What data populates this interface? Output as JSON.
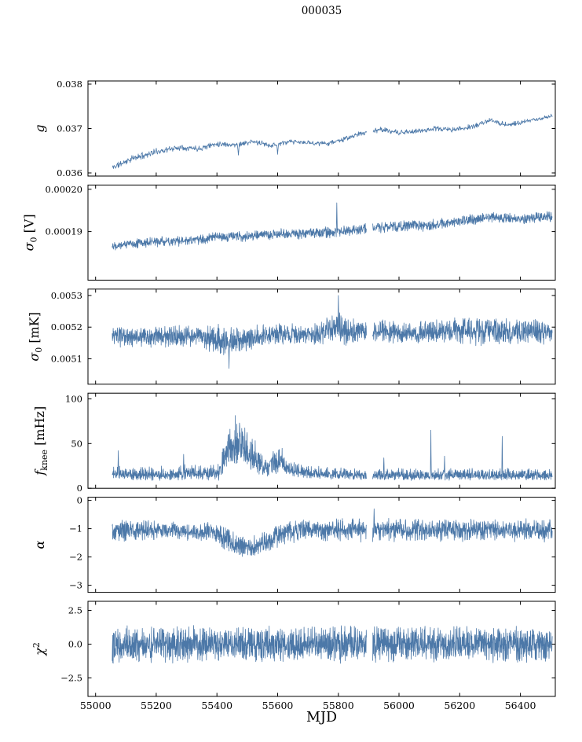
{
  "chart_data": {
    "type": "line",
    "title": "000035",
    "xlabel": "MJD",
    "line_color": "#4c78a8",
    "axis_color": "#000000",
    "background": "#ffffff",
    "xlim": [
      54975,
      56515
    ],
    "x_start": 55055,
    "x_end": 56505,
    "gaps": [
      [
        55893,
        55913
      ]
    ],
    "xticks": {
      "values": [
        55000,
        55200,
        55400,
        55600,
        55800,
        56000,
        56200,
        56400
      ],
      "labels": [
        "55000",
        "55200",
        "55400",
        "55600",
        "55800",
        "56000",
        "56200",
        "56400"
      ]
    },
    "panels": [
      {
        "name": "g",
        "ylabel": [
          {
            "t": "g",
            "s": "i"
          }
        ],
        "ylim": [
          0.03593,
          0.03807
        ],
        "ytick_values": [
          0.036,
          0.037,
          0.038
        ],
        "ytick_labels": [
          "0.036",
          "0.037",
          "0.038"
        ],
        "mean": [
          [
            55055,
            0.03612
          ],
          [
            55120,
            0.03632
          ],
          [
            55200,
            0.03648
          ],
          [
            55280,
            0.03658
          ],
          [
            55340,
            0.03655
          ],
          [
            55400,
            0.03666
          ],
          [
            55460,
            0.03663
          ],
          [
            55520,
            0.0367
          ],
          [
            55580,
            0.03662
          ],
          [
            55640,
            0.0367
          ],
          [
            55700,
            0.03668
          ],
          [
            55760,
            0.03666
          ],
          [
            55820,
            0.03676
          ],
          [
            55880,
            0.0369
          ],
          [
            55940,
            0.03698
          ],
          [
            56000,
            0.0369
          ],
          [
            56060,
            0.03694
          ],
          [
            56120,
            0.037
          ],
          [
            56180,
            0.03697
          ],
          [
            56240,
            0.03704
          ],
          [
            56300,
            0.03718
          ],
          [
            56360,
            0.03708
          ],
          [
            56420,
            0.03716
          ],
          [
            56505,
            0.03728
          ]
        ],
        "amp": [
          [
            55055,
            9e-05
          ],
          [
            55300,
            8e-05
          ],
          [
            55700,
            6e-05
          ],
          [
            56000,
            7e-05
          ],
          [
            56505,
            6e-05
          ]
        ],
        "spikes": [
          [
            55470,
            0.0364
          ],
          [
            55600,
            0.03642
          ]
        ],
        "n": 1100,
        "seed": 11
      },
      {
        "name": "sigma0_V",
        "ylabel": [
          {
            "t": "σ",
            "s": "i"
          },
          {
            "t": "0",
            "s": "sub"
          },
          {
            "t": " [V]",
            "s": "n"
          }
        ],
        "ylim": [
          0.0001785,
          0.000201
        ],
        "ytick_values": [
          0.00019,
          0.0002
        ],
        "ytick_labels": [
          "0.00019",
          "0.00020"
        ],
        "mean": [
          [
            55055,
            0.0001868
          ],
          [
            55200,
            0.0001876
          ],
          [
            55300,
            0.0001878
          ],
          [
            55400,
            0.0001886
          ],
          [
            55500,
            0.000189
          ],
          [
            55600,
            0.0001894
          ],
          [
            55700,
            0.0001896
          ],
          [
            55800,
            0.0001898
          ],
          [
            55900,
            0.0001908
          ],
          [
            56000,
            0.0001913
          ],
          [
            56100,
            0.0001915
          ],
          [
            56200,
            0.0001924
          ],
          [
            56300,
            0.0001934
          ],
          [
            56400,
            0.000193
          ],
          [
            56505,
            0.0001937
          ]
        ],
        "amp": [
          [
            55055,
            1.3e-06
          ],
          [
            56000,
            1.5e-06
          ],
          [
            56505,
            1.4e-06
          ]
        ],
        "spikes": [
          [
            55795,
            0.0001968
          ]
        ],
        "n": 1700,
        "seed": 22
      },
      {
        "name": "sigma0_mK",
        "ylabel": [
          {
            "t": "σ",
            "s": "i"
          },
          {
            "t": "0",
            "s": "sub"
          },
          {
            "t": " [mK]",
            "s": "n"
          }
        ],
        "ylim": [
          0.00502,
          0.00532
        ],
        "ytick_values": [
          0.0051,
          0.0052,
          0.0053
        ],
        "ytick_labels": [
          "0.0051",
          "0.0052",
          "0.0053"
        ],
        "mean": [
          [
            55055,
            0.00517
          ],
          [
            55200,
            0.005168
          ],
          [
            55350,
            0.005172
          ],
          [
            55440,
            0.00515
          ],
          [
            55520,
            0.005168
          ],
          [
            55600,
            0.00518
          ],
          [
            55700,
            0.005175
          ],
          [
            55790,
            0.005195
          ],
          [
            55860,
            0.005185
          ],
          [
            56000,
            0.005185
          ],
          [
            56100,
            0.005182
          ],
          [
            56200,
            0.005188
          ],
          [
            56300,
            0.00519
          ],
          [
            56400,
            0.005185
          ],
          [
            56505,
            0.005188
          ]
        ],
        "amp": [
          [
            55055,
            3.5e-05
          ],
          [
            55350,
            3.8e-05
          ],
          [
            55440,
            6e-05
          ],
          [
            55520,
            4e-05
          ],
          [
            55700,
            3.5e-05
          ],
          [
            55795,
            6e-05
          ],
          [
            55900,
            4e-05
          ],
          [
            56100,
            4e-05
          ],
          [
            56250,
            5e-05
          ],
          [
            56350,
            5e-05
          ],
          [
            56505,
            4e-05
          ]
        ],
        "spikes": [
          [
            55800,
            0.0053
          ],
          [
            55440,
            0.00507
          ]
        ],
        "n": 1900,
        "seed": 33
      },
      {
        "name": "f_knee",
        "ylabel": [
          {
            "t": "f",
            "s": "i"
          },
          {
            "t": "knee",
            "s": "sub"
          },
          {
            "t": " [mHz]",
            "s": "n"
          }
        ],
        "ylim": [
          0,
          106.4
        ],
        "ytick_values": [
          0,
          50,
          100
        ],
        "ytick_labels": [
          "0",
          "50",
          "100"
        ],
        "mean": [
          [
            55055,
            16
          ],
          [
            55150,
            14
          ],
          [
            55250,
            15
          ],
          [
            55330,
            17
          ],
          [
            55380,
            15
          ],
          [
            55410,
            18
          ],
          [
            55430,
            35
          ],
          [
            55455,
            47
          ],
          [
            55475,
            48
          ],
          [
            55500,
            40
          ],
          [
            55530,
            30
          ],
          [
            55560,
            22
          ],
          [
            55590,
            27
          ],
          [
            55615,
            29
          ],
          [
            55640,
            21
          ],
          [
            55680,
            17
          ],
          [
            55800,
            15
          ],
          [
            56000,
            14
          ],
          [
            56200,
            14
          ],
          [
            56505,
            14
          ]
        ],
        "amp": [
          [
            55055,
            6
          ],
          [
            55300,
            7
          ],
          [
            55400,
            8
          ],
          [
            55430,
            20
          ],
          [
            55455,
            23
          ],
          [
            55475,
            22
          ],
          [
            55500,
            19
          ],
          [
            55530,
            14
          ],
          [
            55560,
            11
          ],
          [
            55600,
            13
          ],
          [
            55640,
            9
          ],
          [
            55700,
            6
          ],
          [
            56000,
            5.5
          ],
          [
            56505,
            5.5
          ]
        ],
        "skew_pos": 1.6,
        "clamp_min": 3,
        "spikes": [
          [
            55075,
            42
          ],
          [
            55290,
            38
          ],
          [
            55950,
            34
          ],
          [
            56105,
            65
          ],
          [
            56150,
            36
          ],
          [
            56340,
            58
          ]
        ],
        "n": 1900,
        "seed": 44
      },
      {
        "name": "alpha",
        "ylabel": [
          {
            "t": "α",
            "s": "i"
          }
        ],
        "ylim": [
          -3.25,
          0.11
        ],
        "ytick_values": [
          0,
          -1,
          -2,
          -3
        ],
        "ytick_labels": [
          "0",
          "−1",
          "−2",
          "−3"
        ],
        "mean": [
          [
            55055,
            -1.05
          ],
          [
            55250,
            -1.05
          ],
          [
            55320,
            -1.15
          ],
          [
            55380,
            -1.1
          ],
          [
            55430,
            -1.35
          ],
          [
            55470,
            -1.6
          ],
          [
            55520,
            -1.65
          ],
          [
            55560,
            -1.5
          ],
          [
            55600,
            -1.25
          ],
          [
            55640,
            -1.1
          ],
          [
            55700,
            -1.05
          ],
          [
            56000,
            -1.05
          ],
          [
            56505,
            -1.05
          ]
        ],
        "amp": [
          [
            55055,
            0.45
          ],
          [
            55280,
            0.35
          ],
          [
            55320,
            0.3
          ],
          [
            55380,
            0.4
          ],
          [
            55470,
            0.45
          ],
          [
            55560,
            0.45
          ],
          [
            55620,
            0.5
          ],
          [
            55700,
            0.45
          ],
          [
            56000,
            0.45
          ],
          [
            56200,
            0.42
          ],
          [
            56505,
            0.45
          ]
        ],
        "spikes": [
          [
            55918,
            -0.3
          ]
        ],
        "n": 1900,
        "seed": 55
      },
      {
        "name": "chi2",
        "ylabel": [
          {
            "t": "χ",
            "s": "i"
          },
          {
            "t": "2",
            "s": "sup"
          }
        ],
        "ylim": [
          -3.87,
          3.17
        ],
        "ytick_values": [
          2.5,
          0.0,
          -2.5
        ],
        "ytick_labels": [
          "2.5",
          "0.0",
          "−2.5"
        ],
        "mean": [
          [
            55055,
            0
          ],
          [
            56505,
            0
          ]
        ],
        "amp": [
          [
            55055,
            1.45
          ],
          [
            56505,
            1.45
          ]
        ],
        "spikes": [],
        "n": 2300,
        "seed": 66
      }
    ]
  }
}
